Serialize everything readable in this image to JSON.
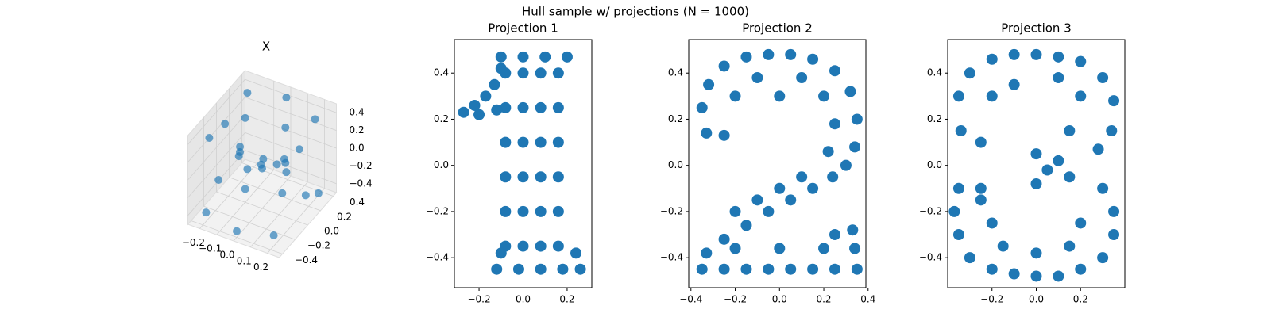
{
  "title": "Hull sample w/ projections (N = 1000)",
  "chart_data": [
    {
      "type": "scatter3d",
      "title": "X",
      "color": "#1f77b4",
      "x": [
        -0.2,
        0,
        0.2,
        0.2,
        0,
        -0.2,
        -0.1,
        0.1,
        -0.22,
        0.22,
        -0.1,
        0.1,
        0,
        0.05,
        -0.05,
        0.15,
        -0.15,
        -0.2,
        0,
        0.2,
        0.22,
        0,
        -0.2,
        -0.1,
        0.1,
        -0.22,
        0.22
      ],
      "y": [
        -0.3,
        -0.35,
        -0.3,
        0.3,
        0.38,
        0.3,
        0,
        0.1,
        0,
        0,
        -0.1,
        0.1,
        0,
        -0.15,
        0.15,
        -0.05,
        0.05,
        -0.35,
        -0.4,
        -0.35,
        0.3,
        0.38,
        0.3,
        0,
        0.05,
        -0.1,
        0.1
      ],
      "z": [
        0.4,
        0.42,
        0.38,
        0.4,
        0.44,
        0.42,
        0.45,
        0.4,
        0.3,
        0.32,
        0.1,
        0,
        -0.05,
        0.15,
        -0.1,
        0.2,
        0.05,
        -0.4,
        -0.43,
        -0.38,
        -0.42,
        -0.4,
        -0.44,
        -0.35,
        -0.3,
        -0.25,
        -0.28
      ],
      "xlim": [
        -0.27,
        0.27
      ],
      "ylim": [
        -0.45,
        0.45
      ],
      "zlim": [
        -0.5,
        0.5
      ],
      "xticks": [
        {
          "value": -0.2,
          "label": "−0.2"
        },
        {
          "value": -0.1,
          "label": "−0.1"
        },
        {
          "value": 0,
          "label": "0.0"
        },
        {
          "value": 0.1,
          "label": "0.1"
        },
        {
          "value": 0.2,
          "label": "0.2"
        }
      ],
      "yticks": [
        {
          "value": -0.4,
          "label": "−0.4"
        },
        {
          "value": -0.2,
          "label": "−0.2"
        },
        {
          "value": 0,
          "label": "0.0"
        },
        {
          "value": 0.2,
          "label": "0.2"
        },
        {
          "value": 0.4,
          "label": "0.4"
        }
      ],
      "zticks": [
        {
          "value": -0.4,
          "label": "−0.4"
        },
        {
          "value": -0.2,
          "label": "−0.2"
        },
        {
          "value": 0,
          "label": "0.0"
        },
        {
          "value": 0.2,
          "label": "0.2"
        },
        {
          "value": 0.4,
          "label": "0.4"
        }
      ]
    },
    {
      "type": "scatter",
      "title": "Projection 1",
      "color": "#1f77b4",
      "x": [
        -0.08,
        0,
        0.08,
        0.16,
        -0.08,
        0,
        0.08,
        0.16,
        -0.08,
        0,
        0.08,
        0.16,
        -0.08,
        0,
        0.08,
        0.16,
        -0.08,
        0,
        0.08,
        0.16,
        -0.08,
        0,
        0.08,
        0.16,
        -0.1,
        0,
        0.1,
        0.2,
        -0.12,
        -0.02,
        0.08,
        0.18,
        0.26,
        0.24,
        -0.1,
        -0.27,
        -0.22,
        -0.17,
        -0.13,
        -0.2,
        -0.12,
        -0.1
      ],
      "y": [
        -0.35,
        -0.35,
        -0.35,
        -0.35,
        -0.2,
        -0.2,
        -0.2,
        -0.2,
        -0.05,
        -0.05,
        -0.05,
        -0.05,
        0.1,
        0.1,
        0.1,
        0.1,
        0.25,
        0.25,
        0.25,
        0.25,
        0.4,
        0.4,
        0.4,
        0.4,
        0.47,
        0.47,
        0.47,
        0.47,
        -0.45,
        -0.45,
        -0.45,
        -0.45,
        -0.45,
        -0.38,
        -0.38,
        0.23,
        0.26,
        0.3,
        0.35,
        0.22,
        0.24,
        0.42
      ],
      "xlim": [
        -0.312,
        0.312
      ],
      "ylim": [
        -0.53,
        0.545
      ],
      "xticks": [
        {
          "value": -0.2,
          "label": "−0.2"
        },
        {
          "value": 0,
          "label": "0.0"
        },
        {
          "value": 0.2,
          "label": "0.2"
        }
      ],
      "yticks": [
        {
          "value": -0.4,
          "label": "−0.4"
        },
        {
          "value": -0.2,
          "label": "−0.2"
        },
        {
          "value": 0,
          "label": "0.0"
        },
        {
          "value": 0.2,
          "label": "0.2"
        },
        {
          "value": 0.4,
          "label": "0.4"
        }
      ]
    },
    {
      "type": "scatter",
      "title": "Projection 2",
      "color": "#1f77b4",
      "x": [
        -0.35,
        -0.32,
        -0.25,
        -0.15,
        -0.05,
        0.05,
        0.15,
        0.25,
        0.32,
        0.35,
        0.34,
        0.3,
        -0.33,
        -0.25,
        -0.2,
        0.2,
        0.25,
        0.22,
        -0.1,
        0.1,
        0,
        0.24,
        0.15,
        0.05,
        -0.05,
        -0.15,
        -0.25,
        -0.33,
        0.1,
        0,
        -0.1,
        -0.2,
        -0.35,
        -0.25,
        -0.15,
        -0.05,
        0.05,
        0.15,
        0.25,
        0.35,
        -0.2,
        0,
        0.2,
        0.34,
        0.33,
        0.25
      ],
      "y": [
        0.25,
        0.35,
        0.43,
        0.47,
        0.48,
        0.48,
        0.46,
        0.41,
        0.32,
        0.2,
        0.08,
        0,
        0.14,
        0.13,
        0.3,
        0.3,
        0.18,
        0.06,
        0.38,
        0.38,
        0.3,
        -0.05,
        -0.1,
        -0.15,
        -0.2,
        -0.26,
        -0.32,
        -0.38,
        -0.05,
        -0.1,
        -0.15,
        -0.2,
        -0.45,
        -0.45,
        -0.45,
        -0.45,
        -0.45,
        -0.45,
        -0.45,
        -0.45,
        -0.36,
        -0.36,
        -0.36,
        -0.36,
        -0.28,
        -0.3
      ],
      "xlim": [
        -0.41,
        0.39
      ],
      "ylim": [
        -0.53,
        0.545
      ],
      "xticks": [
        {
          "value": -0.4,
          "label": "−0.4"
        },
        {
          "value": -0.2,
          "label": "−0.2"
        },
        {
          "value": 0,
          "label": "0.0"
        },
        {
          "value": 0.2,
          "label": "0.2"
        },
        {
          "value": 0.4,
          "label": "0.4"
        }
      ],
      "yticks": [
        {
          "value": -0.4,
          "label": "−0.4"
        },
        {
          "value": -0.2,
          "label": "−0.2"
        },
        {
          "value": 0,
          "label": "0.0"
        },
        {
          "value": 0.2,
          "label": "0.2"
        },
        {
          "value": 0.4,
          "label": "0.4"
        }
      ]
    },
    {
      "type": "scatter",
      "title": "Projection 3",
      "color": "#1f77b4",
      "x": [
        -0.35,
        -0.3,
        -0.2,
        -0.1,
        0,
        0.1,
        0.2,
        0.3,
        0.35,
        0.34,
        0.28,
        -0.34,
        -0.25,
        -0.2,
        0.2,
        0.15,
        0,
        0.1,
        -0.1,
        0.1,
        0.05,
        0,
        0.15,
        -0.35,
        -0.25,
        0.3,
        0.35,
        0.35,
        0.3,
        0.2,
        0.1,
        0,
        -0.1,
        -0.2,
        -0.3,
        -0.35,
        -0.37,
        -0.2,
        0.2,
        0.15,
        -0.15,
        0,
        -0.25
      ],
      "y": [
        0.3,
        0.4,
        0.46,
        0.48,
        0.48,
        0.47,
        0.45,
        0.38,
        0.28,
        0.15,
        0.07,
        0.15,
        0.1,
        0.3,
        0.3,
        0.15,
        0.05,
        0.02,
        0.35,
        0.38,
        -0.02,
        -0.08,
        -0.05,
        -0.1,
        -0.1,
        -0.1,
        -0.2,
        -0.3,
        -0.4,
        -0.45,
        -0.48,
        -0.48,
        -0.47,
        -0.45,
        -0.4,
        -0.3,
        -0.2,
        -0.25,
        -0.25,
        -0.35,
        -0.35,
        -0.38,
        -0.15
      ],
      "xlim": [
        -0.4,
        0.4
      ],
      "ylim": [
        -0.53,
        0.545
      ],
      "xticks": [
        {
          "value": -0.2,
          "label": "−0.2"
        },
        {
          "value": 0,
          "label": "0.0"
        },
        {
          "value": 0.2,
          "label": "0.2"
        }
      ],
      "yticks": [
        {
          "value": -0.4,
          "label": "−0.4"
        },
        {
          "value": -0.2,
          "label": "−0.2"
        },
        {
          "value": 0,
          "label": "0.0"
        },
        {
          "value": 0.2,
          "label": "0.2"
        },
        {
          "value": 0.4,
          "label": "0.4"
        }
      ]
    }
  ]
}
